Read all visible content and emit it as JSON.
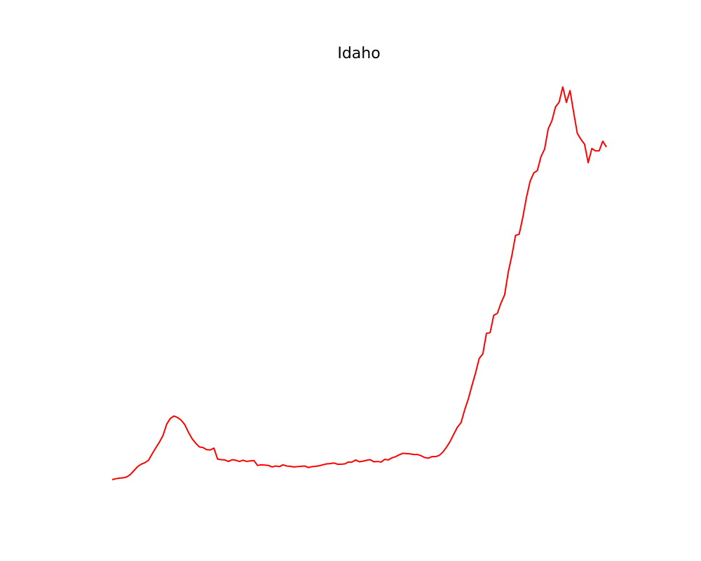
{
  "chart_data": {
    "type": "line",
    "title": "Idaho",
    "xlabel": "",
    "ylabel": "",
    "axes_visible": false,
    "grid": false,
    "legend": "none",
    "series": [
      {
        "color": "#ff0000",
        "values": [
          0.0,
          0.3,
          0.5,
          0.6,
          0.9,
          1.7,
          3.0,
          4.3,
          5.1,
          5.6,
          6.4,
          8.5,
          10.5,
          12.4,
          14.6,
          18.3,
          20.2,
          21.0,
          20.5,
          19.6,
          18.1,
          15.6,
          13.5,
          12.0,
          10.8,
          10.6,
          9.9,
          9.8,
          10.4,
          6.8,
          6.6,
          6.5,
          6.0,
          6.6,
          6.4,
          6.0,
          6.4,
          6.0,
          6.2,
          6.3,
          4.7,
          4.9,
          4.8,
          4.7,
          4.2,
          4.5,
          4.3,
          4.9,
          4.5,
          4.4,
          4.2,
          4.3,
          4.4,
          4.5,
          4.0,
          4.3,
          4.4,
          4.6,
          4.9,
          5.2,
          5.3,
          5.5,
          5.1,
          5.1,
          5.2,
          5.8,
          5.8,
          6.5,
          5.9,
          6.1,
          6.4,
          6.6,
          5.9,
          6.0,
          5.8,
          6.7,
          6.5,
          7.2,
          7.6,
          8.2,
          8.7,
          8.6,
          8.5,
          8.3,
          8.3,
          7.9,
          7.3,
          7.1,
          7.6,
          7.6,
          8.0,
          9.1,
          10.7,
          12.6,
          15.0,
          17.3,
          18.8,
          23.0,
          26.6,
          31.0,
          35.2,
          40.0,
          41.5,
          48.3,
          48.5,
          54.2,
          54.9,
          58.3,
          61.0,
          68.5,
          74.0,
          80.6,
          81.0,
          86.5,
          93.1,
          98.4,
          101.2,
          102.0,
          106.6,
          109.1,
          115.8,
          118.4,
          123.0,
          124.6,
          129.6,
          124.5,
          128.4,
          121.2,
          114.3,
          112.3,
          110.7,
          104.6,
          109.3,
          108.5,
          108.5,
          111.7,
          109.8
        ]
      }
    ]
  }
}
